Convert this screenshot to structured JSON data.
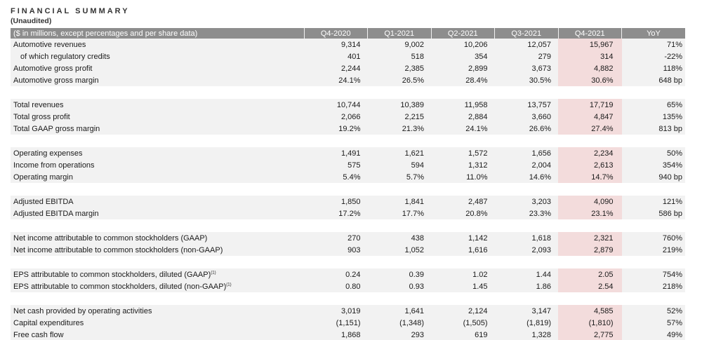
{
  "title": "FINANCIAL SUMMARY",
  "subtitle": "(Unaudited)",
  "header": {
    "label": "($ in millions, except percentages and per share data)",
    "columns": [
      "Q4-2020",
      "Q1-2021",
      "Q2-2021",
      "Q3-2021",
      "Q4-2021",
      "YoY"
    ]
  },
  "rows": [
    {
      "label": "Automotive revenues",
      "values": [
        "9,314",
        "9,002",
        "10,206",
        "12,057",
        "15,967",
        "71%"
      ]
    },
    {
      "label": "of which regulatory credits",
      "values": [
        "401",
        "518",
        "354",
        "279",
        "314",
        "-22%"
      ]
    },
    {
      "label": "Automotive gross profit",
      "values": [
        "2,244",
        "2,385",
        "2,899",
        "3,673",
        "4,882",
        "118%"
      ]
    },
    {
      "label": "Automotive gross margin",
      "values": [
        "24.1%",
        "26.5%",
        "28.4%",
        "30.5%",
        "30.6%",
        "648 bp"
      ]
    },
    {
      "label": "Total revenues",
      "values": [
        "10,744",
        "10,389",
        "11,958",
        "13,757",
        "17,719",
        "65%"
      ]
    },
    {
      "label": "Total gross profit",
      "values": [
        "2,066",
        "2,215",
        "2,884",
        "3,660",
        "4,847",
        "135%"
      ]
    },
    {
      "label": "Total GAAP gross margin",
      "values": [
        "19.2%",
        "21.3%",
        "24.1%",
        "26.6%",
        "27.4%",
        "813 bp"
      ]
    },
    {
      "label": "Operating expenses",
      "values": [
        "1,491",
        "1,621",
        "1,572",
        "1,656",
        "2,234",
        "50%"
      ]
    },
    {
      "label": "Income from operations",
      "values": [
        "575",
        "594",
        "1,312",
        "2,004",
        "2,613",
        "354%"
      ]
    },
    {
      "label": "Operating margin",
      "values": [
        "5.4%",
        "5.7%",
        "11.0%",
        "14.6%",
        "14.7%",
        "940 bp"
      ]
    },
    {
      "label": "Adjusted EBITDA",
      "values": [
        "1,850",
        "1,841",
        "2,487",
        "3,203",
        "4,090",
        "121%"
      ]
    },
    {
      "label": "Adjusted EBITDA margin",
      "values": [
        "17.2%",
        "17.7%",
        "20.8%",
        "23.3%",
        "23.1%",
        "586 bp"
      ]
    },
    {
      "label": "Net income attributable to common stockholders (GAAP)",
      "values": [
        "270",
        "438",
        "1,142",
        "1,618",
        "2,321",
        "760%"
      ]
    },
    {
      "label": "Net income attributable to common stockholders (non-GAAP)",
      "values": [
        "903",
        "1,052",
        "1,616",
        "2,093",
        "2,879",
        "219%"
      ]
    },
    {
      "label": "EPS attributable to common stockholders, diluted (GAAP)",
      "note": "(1)",
      "values": [
        "0.24",
        "0.39",
        "1.02",
        "1.44",
        "2.05",
        "754%"
      ]
    },
    {
      "label": "EPS attributable to common stockholders, diluted (non-GAAP)",
      "note": "(1)",
      "values": [
        "0.80",
        "0.93",
        "1.45",
        "1.86",
        "2.54",
        "218%"
      ]
    },
    {
      "label": "Net cash provided by operating activities",
      "values": [
        "3,019",
        "1,641",
        "2,124",
        "3,147",
        "4,585",
        "52%"
      ]
    },
    {
      "label": "Capital expenditures",
      "values": [
        "(1,151)",
        "(1,348)",
        "(1,505)",
        "(1,819)",
        "(1,810)",
        "57%"
      ]
    },
    {
      "label": "Free cash flow",
      "values": [
        "1,868",
        "293",
        "619",
        "1,328",
        "2,775",
        "49%"
      ]
    }
  ],
  "colors": {
    "header_bg": "#8d8d8d",
    "row_bg": "#f2f2f2",
    "highlight_bg": "#f3dcdc"
  }
}
